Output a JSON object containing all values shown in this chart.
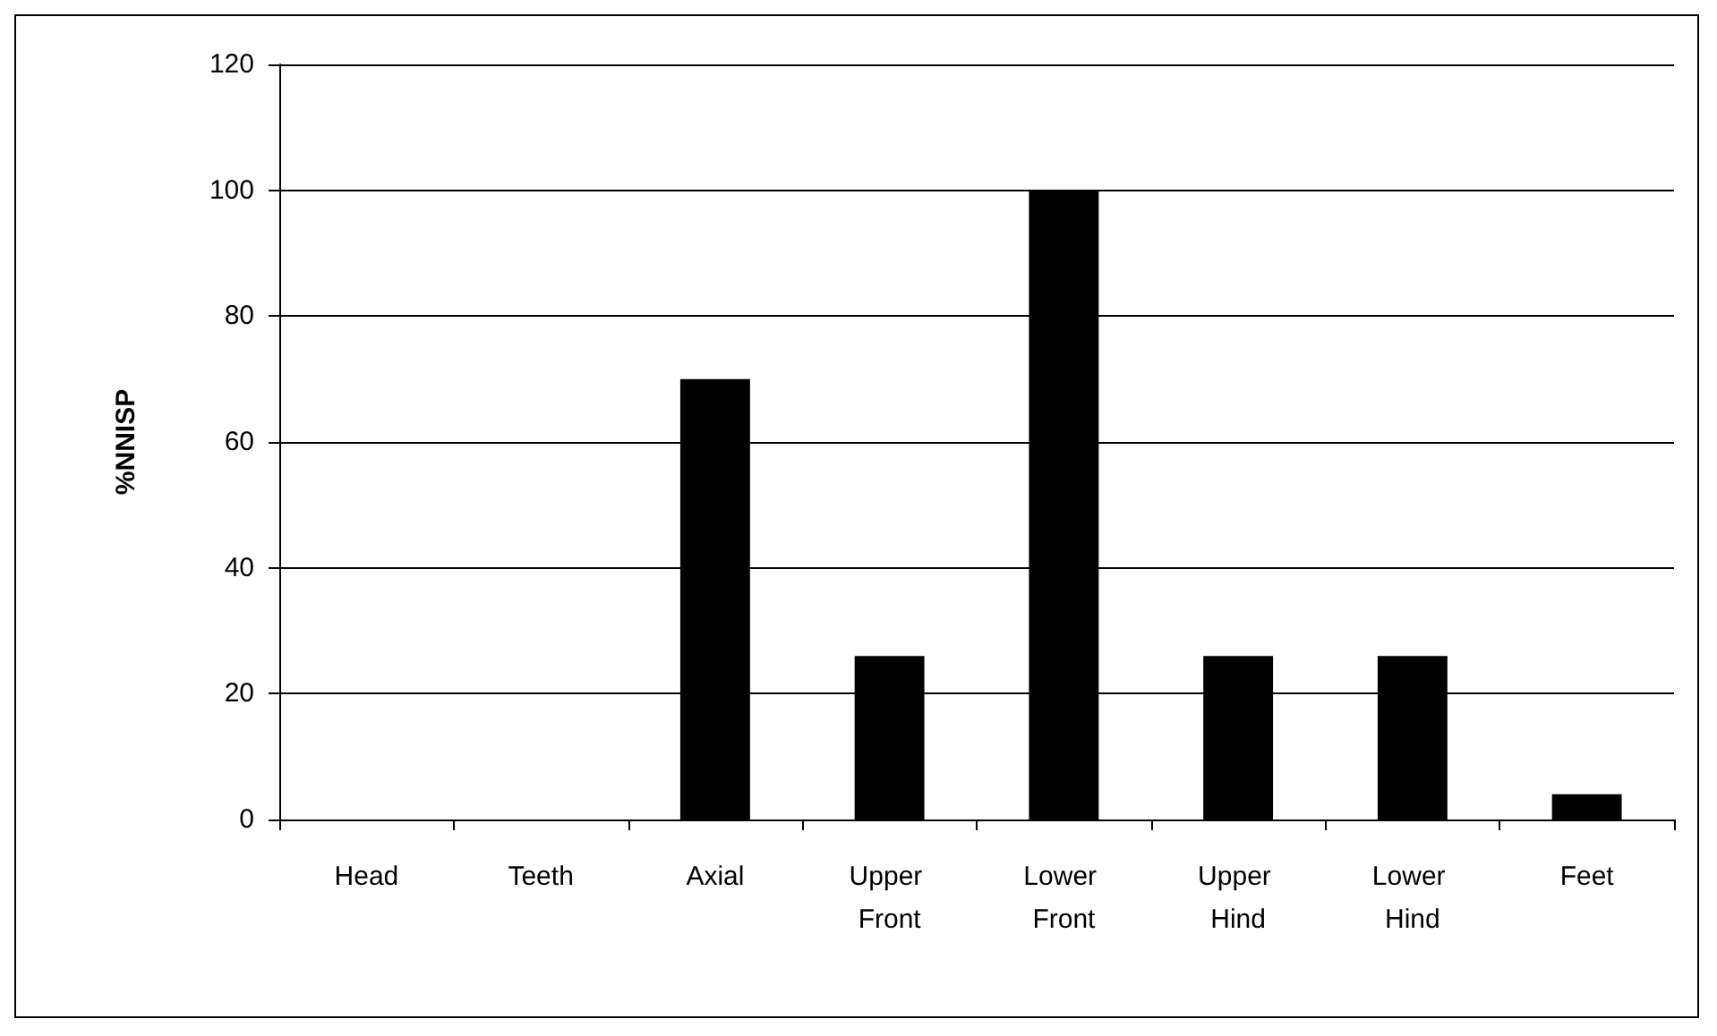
{
  "chart_data": {
    "type": "bar",
    "ylabel": "%NNISP",
    "categories": [
      "Head",
      "Teeth",
      "Axial",
      "Upper Front",
      "Lower Front",
      "Upper Hind",
      "Lower Hind",
      "Feet"
    ],
    "values": [
      0,
      0,
      70,
      26,
      100,
      26,
      26,
      4
    ],
    "color": "#000000",
    "ylim": [
      0,
      120
    ],
    "yticks": [
      0,
      20,
      40,
      60,
      80,
      100,
      120
    ],
    "grid": "y"
  }
}
